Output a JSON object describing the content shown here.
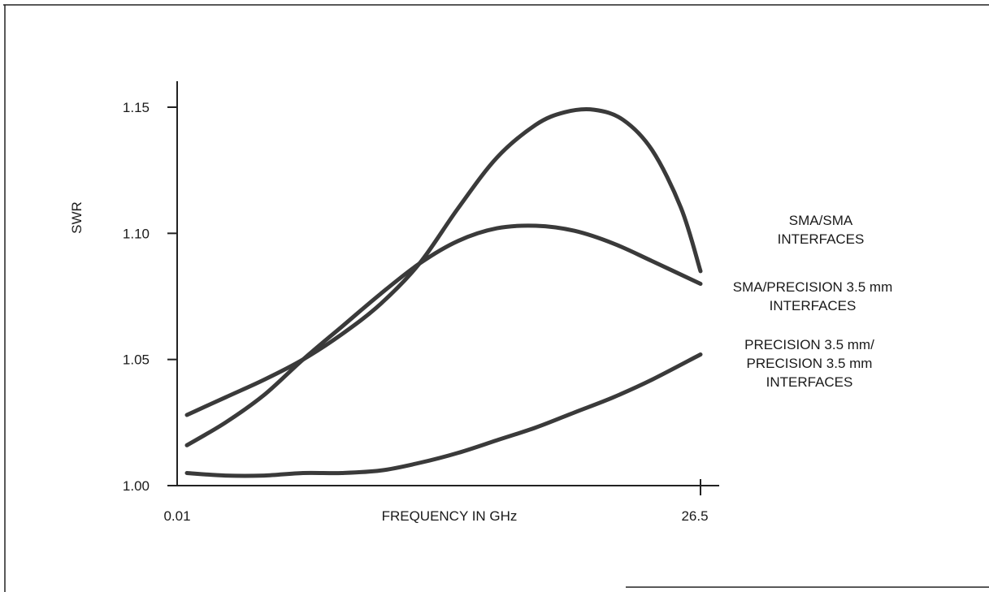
{
  "chart_data": {
    "type": "line",
    "xlabel": "FREQUENCY IN GHz",
    "ylabel": "SWR",
    "x_tick_labels": [
      "0.01",
      "26.5"
    ],
    "y_ticks": [
      1.0,
      1.05,
      1.1,
      1.15
    ],
    "y_tick_labels": [
      "1.00",
      "1.05",
      "1.10",
      "1.15"
    ],
    "xlim": [
      0.01,
      26.5
    ],
    "ylim": [
      1.0,
      1.15
    ],
    "grid": false,
    "legend_placement": "right",
    "series": [
      {
        "legend_lines": [
          "SMA/SMA",
          "INTERFACES"
        ],
        "x": [
          0.01,
          2.0,
          4.0,
          6.0,
          8.0,
          10.0,
          12.0,
          14.0,
          16.0,
          18.0,
          19.5,
          21.0,
          22.5,
          24.0,
          25.5,
          26.5
        ],
        "y": [
          1.028,
          1.035,
          1.042,
          1.05,
          1.06,
          1.072,
          1.088,
          1.11,
          1.13,
          1.143,
          1.148,
          1.149,
          1.145,
          1.133,
          1.11,
          1.085
        ]
      },
      {
        "legend_lines": [
          "SMA/PRECISION 3.5 mm",
          "INTERFACES"
        ],
        "x": [
          0.01,
          2.0,
          4.0,
          6.0,
          8.0,
          10.0,
          12.0,
          14.0,
          16.0,
          18.0,
          20.0,
          22.0,
          24.0,
          26.5
        ],
        "y": [
          1.016,
          1.025,
          1.036,
          1.05,
          1.063,
          1.076,
          1.088,
          1.097,
          1.102,
          1.103,
          1.101,
          1.096,
          1.089,
          1.08
        ]
      },
      {
        "legend_lines": [
          "PRECISION 3.5 mm/",
          "PRECISION 3.5 mm",
          "INTERFACES"
        ],
        "x": [
          0.01,
          2.0,
          4.0,
          6.0,
          8.0,
          10.0,
          12.0,
          14.0,
          16.0,
          18.0,
          20.0,
          22.0,
          24.0,
          26.5
        ],
        "y": [
          1.005,
          1.004,
          1.004,
          1.005,
          1.005,
          1.006,
          1.009,
          1.013,
          1.018,
          1.023,
          1.029,
          1.035,
          1.042,
          1.052
        ]
      }
    ]
  }
}
